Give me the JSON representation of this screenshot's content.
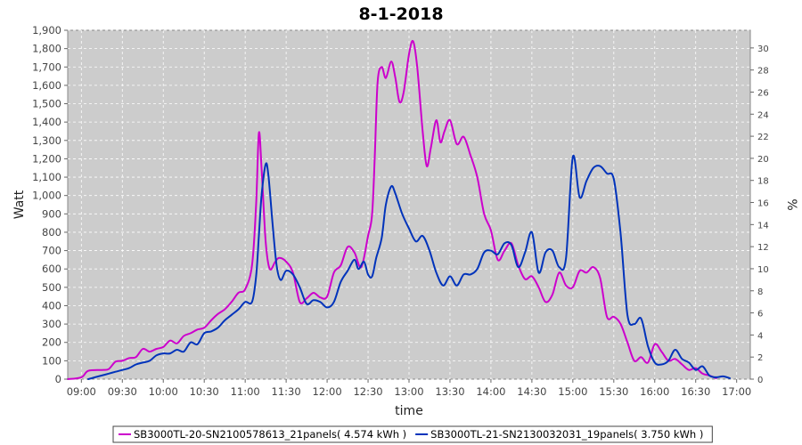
{
  "chart_data": {
    "type": "line",
    "title": "8-1-2018",
    "xlabel": "time",
    "ylabel": "Watt",
    "y2label": "%",
    "xlim": [
      "08:50",
      "17:10"
    ],
    "ylim": [
      0,
      1900
    ],
    "y2lim": [
      0,
      31.6
    ],
    "x_ticks": [
      "09:00",
      "09:30",
      "10:00",
      "10:30",
      "11:00",
      "11:30",
      "12:00",
      "12:30",
      "13:00",
      "13:30",
      "14:00",
      "14:30",
      "15:00",
      "15:30",
      "16:00",
      "16:30",
      "17:00"
    ],
    "y_ticks": [
      "0",
      "100",
      "200",
      "300",
      "400",
      "500",
      "600",
      "700",
      "800",
      "900",
      "1,000",
      "1,100",
      "1,200",
      "1,300",
      "1,400",
      "1,500",
      "1,600",
      "1,700",
      "1,800",
      "1,900"
    ],
    "y2_ticks": [
      "0",
      "2",
      "4",
      "6",
      "8",
      "10",
      "12",
      "14",
      "16",
      "18",
      "20",
      "22",
      "24",
      "26",
      "28",
      "30"
    ],
    "grid": true,
    "legend_position": "bottom",
    "background": "#cccccc",
    "series": [
      {
        "name": "SB3000TL-20-SN2100578613_21panels( 4.574 kWh )",
        "color": "#cc00cc",
        "points": [
          [
            "08:50",
            0
          ],
          [
            "09:00",
            10
          ],
          [
            "09:05",
            45
          ],
          [
            "09:15",
            50
          ],
          [
            "09:20",
            55
          ],
          [
            "09:25",
            95
          ],
          [
            "09:30",
            100
          ],
          [
            "09:35",
            115
          ],
          [
            "09:40",
            120
          ],
          [
            "09:45",
            165
          ],
          [
            "09:50",
            150
          ],
          [
            "09:55",
            165
          ],
          [
            "10:00",
            175
          ],
          [
            "10:05",
            210
          ],
          [
            "10:10",
            195
          ],
          [
            "10:15",
            235
          ],
          [
            "10:20",
            250
          ],
          [
            "10:25",
            270
          ],
          [
            "10:30",
            280
          ],
          [
            "10:35",
            320
          ],
          [
            "10:40",
            355
          ],
          [
            "10:45",
            380
          ],
          [
            "10:50",
            420
          ],
          [
            "10:55",
            470
          ],
          [
            "11:00",
            490
          ],
          [
            "11:05",
            620
          ],
          [
            "11:08",
            950
          ],
          [
            "11:10",
            1340
          ],
          [
            "11:12",
            1150
          ],
          [
            "11:15",
            750
          ],
          [
            "11:18",
            600
          ],
          [
            "11:22",
            640
          ],
          [
            "11:25",
            660
          ],
          [
            "11:30",
            640
          ],
          [
            "11:35",
            580
          ],
          [
            "11:40",
            420
          ],
          [
            "11:45",
            440
          ],
          [
            "11:50",
            470
          ],
          [
            "11:55",
            445
          ],
          [
            "12:00",
            450
          ],
          [
            "12:05",
            580
          ],
          [
            "12:10",
            620
          ],
          [
            "12:15",
            720
          ],
          [
            "12:20",
            690
          ],
          [
            "12:25",
            610
          ],
          [
            "12:30",
            780
          ],
          [
            "12:33",
            900
          ],
          [
            "12:35",
            1230
          ],
          [
            "12:37",
            1620
          ],
          [
            "12:40",
            1700
          ],
          [
            "12:43",
            1640
          ],
          [
            "12:47",
            1730
          ],
          [
            "12:50",
            1640
          ],
          [
            "12:53",
            1510
          ],
          [
            "12:56",
            1560
          ],
          [
            "13:00",
            1770
          ],
          [
            "13:03",
            1840
          ],
          [
            "13:06",
            1700
          ],
          [
            "13:10",
            1350
          ],
          [
            "13:13",
            1160
          ],
          [
            "13:16",
            1260
          ],
          [
            "13:20",
            1410
          ],
          [
            "13:23",
            1290
          ],
          [
            "13:26",
            1350
          ],
          [
            "13:30",
            1410
          ],
          [
            "13:35",
            1280
          ],
          [
            "13:40",
            1320
          ],
          [
            "13:45",
            1220
          ],
          [
            "13:50",
            1100
          ],
          [
            "13:55",
            900
          ],
          [
            "14:00",
            810
          ],
          [
            "14:05",
            650
          ],
          [
            "14:10",
            700
          ],
          [
            "14:15",
            740
          ],
          [
            "14:20",
            620
          ],
          [
            "14:25",
            545
          ],
          [
            "14:30",
            560
          ],
          [
            "14:35",
            500
          ],
          [
            "14:40",
            420
          ],
          [
            "14:45",
            460
          ],
          [
            "14:50",
            580
          ],
          [
            "14:55",
            510
          ],
          [
            "15:00",
            500
          ],
          [
            "15:05",
            590
          ],
          [
            "15:10",
            580
          ],
          [
            "15:15",
            610
          ],
          [
            "15:20",
            550
          ],
          [
            "15:25",
            340
          ],
          [
            "15:30",
            340
          ],
          [
            "15:35",
            300
          ],
          [
            "15:40",
            200
          ],
          [
            "15:45",
            100
          ],
          [
            "15:50",
            120
          ],
          [
            "15:55",
            90
          ],
          [
            "16:00",
            190
          ],
          [
            "16:05",
            150
          ],
          [
            "16:10",
            100
          ],
          [
            "16:15",
            110
          ],
          [
            "16:20",
            80
          ],
          [
            "16:25",
            50
          ],
          [
            "16:30",
            60
          ],
          [
            "16:35",
            30
          ],
          [
            "16:40",
            20
          ],
          [
            "16:45",
            5
          ]
        ]
      },
      {
        "name": "SB3000TL-21-SN2130032031_19panels( 3.750 kWh )",
        "color": "#0033bb",
        "points": [
          [
            "09:05",
            0
          ],
          [
            "09:10",
            10
          ],
          [
            "09:15",
            20
          ],
          [
            "09:20",
            30
          ],
          [
            "09:25",
            40
          ],
          [
            "09:30",
            50
          ],
          [
            "09:35",
            60
          ],
          [
            "09:40",
            80
          ],
          [
            "09:45",
            90
          ],
          [
            "09:50",
            100
          ],
          [
            "09:55",
            130
          ],
          [
            "10:00",
            140
          ],
          [
            "10:05",
            140
          ],
          [
            "10:10",
            160
          ],
          [
            "10:15",
            150
          ],
          [
            "10:20",
            200
          ],
          [
            "10:25",
            190
          ],
          [
            "10:30",
            250
          ],
          [
            "10:35",
            260
          ],
          [
            "10:40",
            280
          ],
          [
            "10:45",
            320
          ],
          [
            "10:50",
            350
          ],
          [
            "10:55",
            380
          ],
          [
            "11:00",
            420
          ],
          [
            "11:05",
            420
          ],
          [
            "11:08",
            560
          ],
          [
            "11:10",
            780
          ],
          [
            "11:12",
            1000
          ],
          [
            "11:15",
            1170
          ],
          [
            "11:17",
            1110
          ],
          [
            "11:20",
            850
          ],
          [
            "11:23",
            620
          ],
          [
            "11:26",
            540
          ],
          [
            "11:30",
            590
          ],
          [
            "11:35",
            570
          ],
          [
            "11:40",
            500
          ],
          [
            "11:45",
            410
          ],
          [
            "11:50",
            430
          ],
          [
            "11:55",
            420
          ],
          [
            "12:00",
            390
          ],
          [
            "12:05",
            420
          ],
          [
            "12:10",
            530
          ],
          [
            "12:15",
            590
          ],
          [
            "12:20",
            650
          ],
          [
            "12:23",
            600
          ],
          [
            "12:27",
            640
          ],
          [
            "12:30",
            570
          ],
          [
            "12:33",
            560
          ],
          [
            "12:36",
            660
          ],
          [
            "12:40",
            770
          ],
          [
            "12:43",
            950
          ],
          [
            "12:47",
            1050
          ],
          [
            "12:50",
            1010
          ],
          [
            "12:55",
            900
          ],
          [
            "13:00",
            820
          ],
          [
            "13:05",
            750
          ],
          [
            "13:10",
            780
          ],
          [
            "13:15",
            700
          ],
          [
            "13:20",
            580
          ],
          [
            "13:25",
            510
          ],
          [
            "13:30",
            560
          ],
          [
            "13:35",
            510
          ],
          [
            "13:40",
            570
          ],
          [
            "13:45",
            570
          ],
          [
            "13:50",
            600
          ],
          [
            "13:55",
            690
          ],
          [
            "14:00",
            700
          ],
          [
            "14:05",
            680
          ],
          [
            "14:10",
            740
          ],
          [
            "14:15",
            730
          ],
          [
            "14:20",
            610
          ],
          [
            "14:25",
            690
          ],
          [
            "14:30",
            800
          ],
          [
            "14:35",
            580
          ],
          [
            "14:40",
            690
          ],
          [
            "14:45",
            700
          ],
          [
            "14:50",
            610
          ],
          [
            "14:55",
            660
          ],
          [
            "15:00",
            1210
          ],
          [
            "15:05",
            990
          ],
          [
            "15:10",
            1080
          ],
          [
            "15:15",
            1150
          ],
          [
            "15:20",
            1160
          ],
          [
            "15:25",
            1120
          ],
          [
            "15:30",
            1090
          ],
          [
            "15:35",
            790
          ],
          [
            "15:40",
            350
          ],
          [
            "15:45",
            300
          ],
          [
            "15:50",
            330
          ],
          [
            "15:55",
            180
          ],
          [
            "16:00",
            90
          ],
          [
            "16:05",
            80
          ],
          [
            "16:10",
            100
          ],
          [
            "16:15",
            160
          ],
          [
            "16:20",
            110
          ],
          [
            "16:25",
            90
          ],
          [
            "16:30",
            50
          ],
          [
            "16:35",
            70
          ],
          [
            "16:40",
            20
          ],
          [
            "16:45",
            10
          ],
          [
            "16:50",
            15
          ],
          [
            "16:55",
            5
          ]
        ]
      }
    ]
  }
}
